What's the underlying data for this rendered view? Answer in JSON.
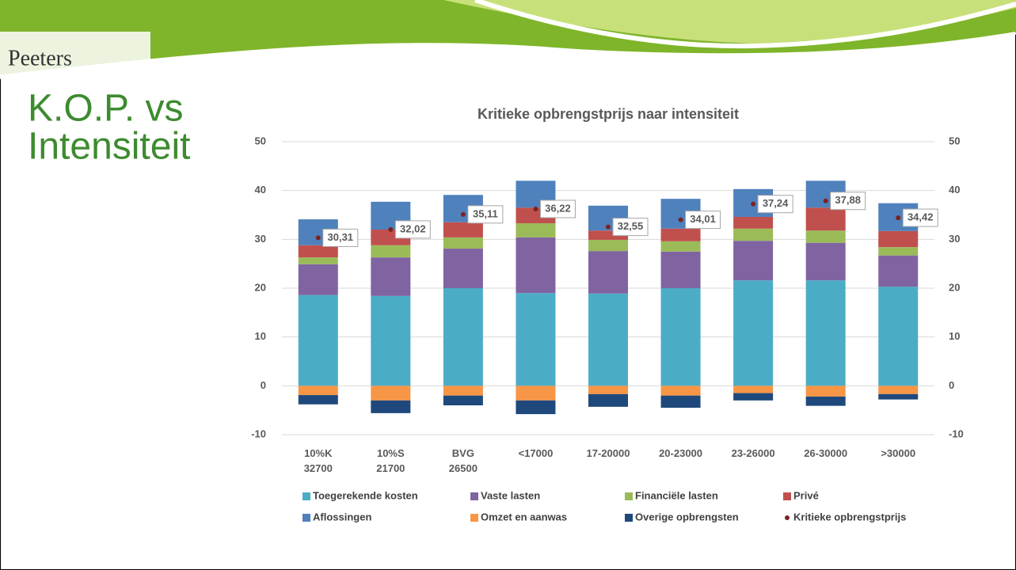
{
  "slide": {
    "logo": "Peeters",
    "title_line1": "K.O.P. vs",
    "title_line2": "Intensiteit"
  },
  "chart_data": {
    "type": "stacked_bar",
    "title": "Kritieke opbrengstprijs naar intensiteit",
    "categories": [
      [
        "10%K",
        "32700"
      ],
      [
        "10%S",
        "21700"
      ],
      [
        "BVG",
        "26500"
      ],
      [
        "<17000"
      ],
      [
        "17-20000"
      ],
      [
        "20-23000"
      ],
      [
        "23-26000"
      ],
      [
        "26-30000"
      ],
      [
        ">30000"
      ]
    ],
    "series": [
      {
        "name": "Toegerekende kosten",
        "color": "#4bacc6",
        "values": [
          18.6,
          18.4,
          20.0,
          19.0,
          18.9,
          20.0,
          21.6,
          21.6,
          20.3
        ]
      },
      {
        "name": "Vaste lasten",
        "color": "#8064a2",
        "values": [
          6.3,
          7.9,
          8.1,
          11.4,
          8.7,
          7.5,
          8.1,
          7.7,
          6.4
        ]
      },
      {
        "name": "Financiële lasten",
        "color": "#9bbb59",
        "values": [
          1.4,
          2.5,
          2.3,
          2.9,
          2.3,
          2.1,
          2.5,
          2.5,
          1.7
        ]
      },
      {
        "name": "Privé",
        "color": "#c0504d",
        "values": [
          2.5,
          3.2,
          3.1,
          3.2,
          1.9,
          2.6,
          2.4,
          4.7,
          3.3
        ]
      },
      {
        "name": "Aflossingen",
        "color": "#4f81bd",
        "values": [
          5.3,
          5.7,
          5.6,
          5.5,
          5.1,
          6.1,
          5.7,
          5.5,
          5.7
        ]
      },
      {
        "name": "Omzet en aanwas",
        "color": "#f79646",
        "values": [
          -1.9,
          -3.0,
          -2.0,
          -3.0,
          -1.7,
          -2.0,
          -1.5,
          -2.2,
          -1.7
        ]
      },
      {
        "name": "Overige opbrengsten",
        "color": "#1f497d",
        "values": [
          -1.9,
          -2.6,
          -2.0,
          -2.8,
          -2.6,
          -2.5,
          -1.5,
          -1.9,
          -1.1
        ]
      },
      {
        "name": "Kritieke opbrengstprijs",
        "color": "#7b2222",
        "type": "point",
        "values": [
          30.31,
          32.02,
          35.11,
          36.22,
          32.55,
          34.01,
          37.24,
          37.88,
          34.42
        ],
        "value_labels": [
          "30,31",
          "32,02",
          "35,11",
          "36,22",
          "32,55",
          "34,01",
          "37,24",
          "37,88",
          "34,42"
        ]
      }
    ],
    "ylim": [
      -10,
      50
    ],
    "yticks": [
      -10,
      0,
      10,
      20,
      30,
      40,
      50
    ],
    "y2lim": [
      -10,
      50
    ],
    "y2ticks": [
      -10,
      0,
      10,
      20,
      30,
      40,
      50
    ],
    "grid": true
  }
}
